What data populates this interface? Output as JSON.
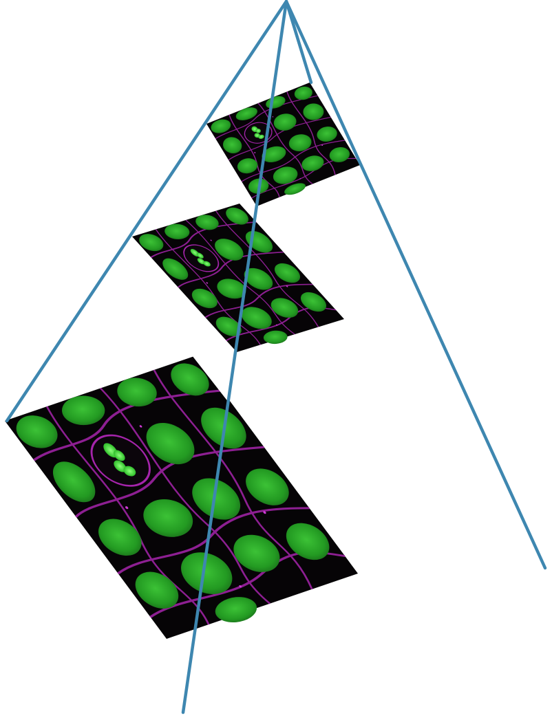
{
  "figure": {
    "description_free": true,
    "colors": {
      "background": "#ffffff",
      "pyramid_edge": "#3e87b0",
      "tile_background": "#050505",
      "nucleus_green": "#2fae2a",
      "nucleus_green_bright": "#5ee04f",
      "membrane_magenta": "#b126b8",
      "gap_white": "#ffffff"
    },
    "levels": [
      {
        "id": "level-0-bottom",
        "role": "full-resolution tile"
      },
      {
        "id": "level-1-middle",
        "role": "half-resolution tile"
      },
      {
        "id": "level-2-top",
        "role": "quarter-resolution tile"
      }
    ]
  }
}
